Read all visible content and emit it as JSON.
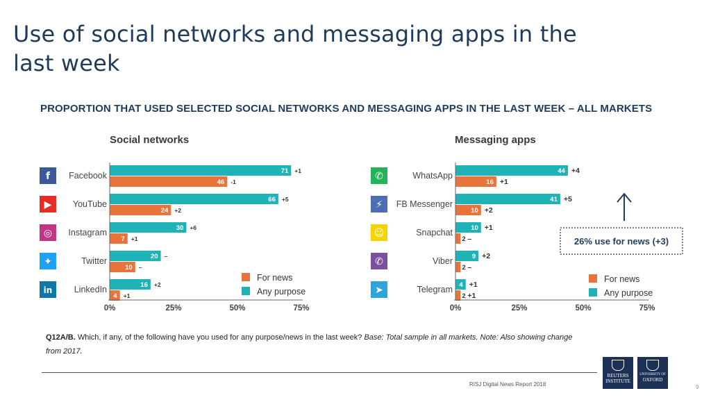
{
  "slide": {
    "title": "Use of social networks and messaging apps in the last week",
    "chart_heading": "PROPORTION THAT USED SELECTED SOCIAL NETWORKS AND MESSAGING APPS IN THE LAST WEEK – ALL MARKETS",
    "footnote_bold": "Q12A/B.",
    "footnote_text": " Which, if any, of the following have you used for any purpose/news in the last week? ",
    "footnote_italic": "Base: Total sample in all markets. Note: Also showing change from 2017.",
    "credit": "RISJ Digital News Report 2018",
    "page_number": "9",
    "logo_reuters": {
      "line1": "REUTERS",
      "line2": "INSTITUTE"
    },
    "logo_oxford": {
      "line1": "UNIVERSITY OF",
      "line2": "OXFORD"
    }
  },
  "colors": {
    "any_purpose": "#1fb3b8",
    "for_news": "#e8743b",
    "icon_facebook": "#3b5998",
    "icon_youtube": "#e52d27",
    "icon_instagram": "#c13584",
    "icon_twitter": "#1da1f2",
    "icon_linkedin": "#0e76a8",
    "icon_whatsapp": "#25b35a",
    "icon_messenger": "#4a6fb5",
    "icon_snapchat": "#f5d300",
    "icon_viber": "#7b519d",
    "icon_telegram": "#2fa4d9"
  },
  "chart_data": [
    {
      "type": "bar",
      "orientation": "horizontal",
      "title": "Social networks",
      "categories": [
        "Facebook",
        "YouTube",
        "Instagram",
        "Twitter",
        "LinkedIn"
      ],
      "icons": [
        "facebook-icon",
        "youtube-icon",
        "instagram-icon",
        "twitter-icon",
        "linkedin-icon"
      ],
      "series": [
        {
          "name": "Any purpose",
          "values": [
            71,
            66,
            30,
            20,
            16
          ],
          "changes": [
            "+1",
            "+5",
            "+6",
            "–",
            "+2"
          ]
        },
        {
          "name": "For news",
          "values": [
            46,
            24,
            7,
            10,
            4
          ],
          "changes": [
            "-1",
            "+2",
            "+1",
            "–",
            "+1"
          ]
        }
      ],
      "xlim": [
        0,
        75
      ],
      "xticks": [
        "0%",
        "25%",
        "50%",
        "75%"
      ],
      "legend": [
        "For news",
        "Any purpose"
      ]
    },
    {
      "type": "bar",
      "orientation": "horizontal",
      "title": "Messaging apps",
      "categories": [
        "WhatsApp",
        "FB Messenger",
        "Snapchat",
        "Viber",
        "Telegram"
      ],
      "icons": [
        "whatsapp-icon",
        "messenger-icon",
        "snapchat-icon",
        "viber-icon",
        "telegram-icon"
      ],
      "series": [
        {
          "name": "Any purpose",
          "values": [
            44,
            41,
            10,
            9,
            4
          ],
          "changes": [
            "+4",
            "+5",
            "+1",
            "+2",
            "+1"
          ]
        },
        {
          "name": "For news",
          "values": [
            16,
            10,
            2,
            2,
            2
          ],
          "changes": [
            "+1",
            "+2",
            "–",
            "–",
            "+1"
          ]
        }
      ],
      "xlim": [
        0,
        75
      ],
      "xticks": [
        "0%",
        "25%",
        "50%",
        "75%"
      ],
      "legend": [
        "For news",
        "Any purpose"
      ],
      "annotation": "26% use for news (+3)"
    }
  ]
}
